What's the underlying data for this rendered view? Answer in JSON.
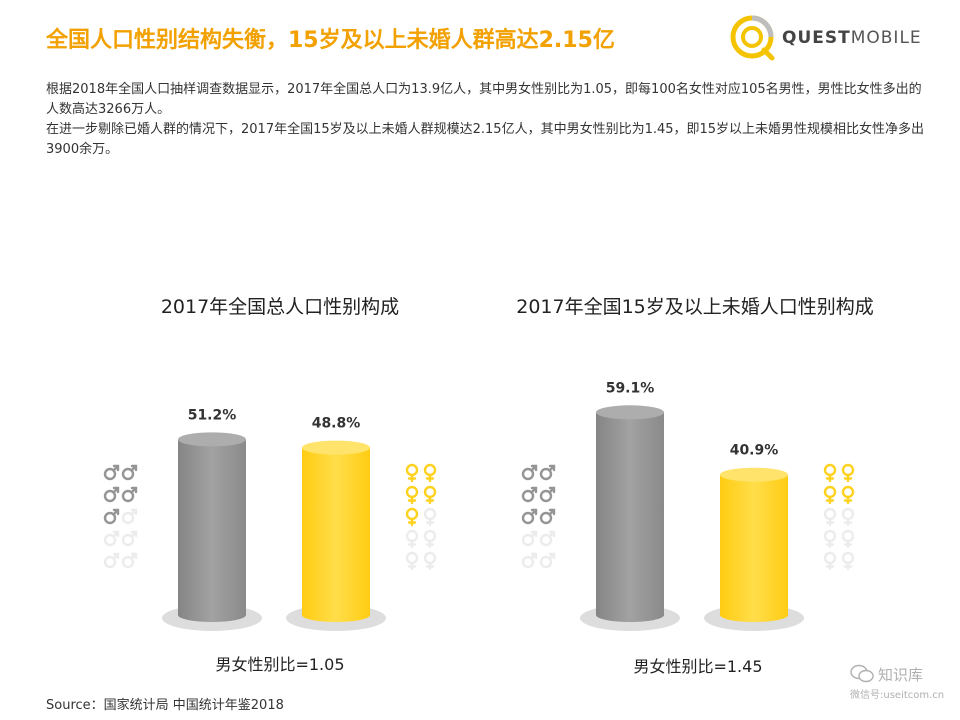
{
  "header": {
    "title": "全国人口性别结构失衡，15岁及以上未婚人群高达2.15亿",
    "brand_main": "QUEST",
    "brand_sub": "MOBILE"
  },
  "intro": {
    "paragraph1": "根据2018年全国人口抽样调查数据显示，2017年全国总人口为13.9亿人，其中男女性别比为1.05，即每100名女性对应105名男性，男性比女性多出的人数高达3266万人。",
    "paragraph2": "在进一步剔除已婚人群的情况下，2017年全国15岁及以上未婚人群规模达2.15亿人，其中男女性别比为1.45，即15岁以上未婚男性规模相比女性净多出3900余万。"
  },
  "source": "Source：国家统计局 中国统计年鉴2018",
  "watermark": {
    "name": "知识库",
    "account": "微信号:useitcom.cn"
  },
  "colors": {
    "accent": "#f2a100",
    "male": "#959595",
    "female": "#ffd21f",
    "ellipse": "#dddddd",
    "icon_faded": "#ececec"
  },
  "icons": {
    "male": "mars-icon",
    "female": "venus-icon"
  },
  "chart_data": [
    {
      "type": "bar",
      "title": "2017年全国总人口性别构成",
      "categories": [
        "男性",
        "女性"
      ],
      "values": [
        51.2,
        48.8
      ],
      "value_labels": [
        "51.2%",
        "48.8%"
      ],
      "unit": "%",
      "ratio_label": "男女性别比=1.05",
      "ylim": [
        0,
        100
      ],
      "grid": false,
      "legend": "none"
    },
    {
      "type": "bar",
      "title": "2017年全国15岁及以上未婚人口性别构成",
      "categories": [
        "男性",
        "女性"
      ],
      "values": [
        59.1,
        40.9
      ],
      "value_labels": [
        "59.1%",
        "40.9%"
      ],
      "unit": "%",
      "ratio_label": "男女性别比=1.45",
      "ylim": [
        0,
        100
      ],
      "grid": false,
      "legend": "none"
    }
  ]
}
